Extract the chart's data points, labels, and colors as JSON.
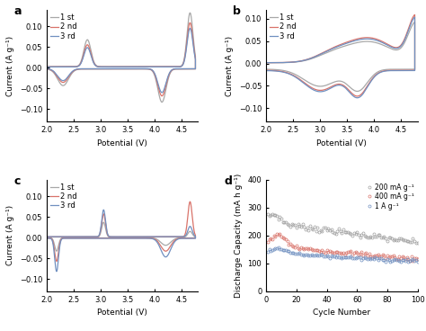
{
  "panel_labels": [
    "a",
    "b",
    "c",
    "d"
  ],
  "cv_colors_1st": "#a8a8a8",
  "cv_colors_2nd": "#d9736a",
  "cv_colors_3rd": "#7090c0",
  "cv_labels": [
    "1 st",
    "2 nd",
    "3 rd"
  ],
  "xlim_cv": [
    2.0,
    4.8
  ],
  "ylim_a": [
    -0.13,
    0.14
  ],
  "ylim_b": [
    -0.13,
    0.12
  ],
  "ylim_c": [
    -0.13,
    0.14
  ],
  "xlabel_cv": "Potential (V)",
  "ylabel_cv": "Current (A g⁻¹)",
  "cycling_color_200": "#a0a0a0",
  "cycling_color_400": "#d9736a",
  "cycling_color_1A": "#7090c0",
  "cycling_labels": [
    "200 mA g⁻¹",
    "400 mA g⁻¹",
    "1 A g⁻¹"
  ],
  "xlabel_d": "Cycle Number",
  "ylabel_d": "Discharge Capacity (mA h g⁻¹)",
  "ylim_d": [
    0,
    400
  ],
  "xlim_d": [
    0,
    100
  ]
}
